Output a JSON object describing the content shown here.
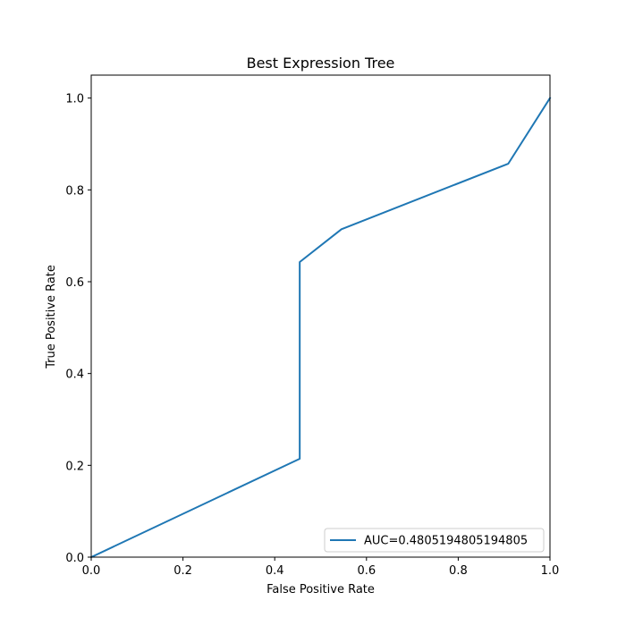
{
  "chart_data": {
    "type": "line",
    "title": "Best Expression Tree",
    "xlabel": "False Positive Rate",
    "ylabel": "True Positive Rate",
    "xlim": [
      0,
      1
    ],
    "ylim": [
      0,
      1.05
    ],
    "xticks": [
      "0.0",
      "0.2",
      "0.4",
      "0.6",
      "0.8",
      "1.0"
    ],
    "yticks": [
      "0.0",
      "0.2",
      "0.4",
      "0.6",
      "0.8",
      "1.0"
    ],
    "grid": false,
    "legend_position": "lower-right",
    "series": [
      {
        "name": "AUC=0.4805194805194805",
        "color": "#1f77b4",
        "x": [
          0.0,
          0.4545,
          0.4545,
          0.5455,
          0.9091,
          1.0
        ],
        "y": [
          0.0,
          0.2143,
          0.6429,
          0.7143,
          0.8571,
          1.0
        ]
      }
    ]
  }
}
